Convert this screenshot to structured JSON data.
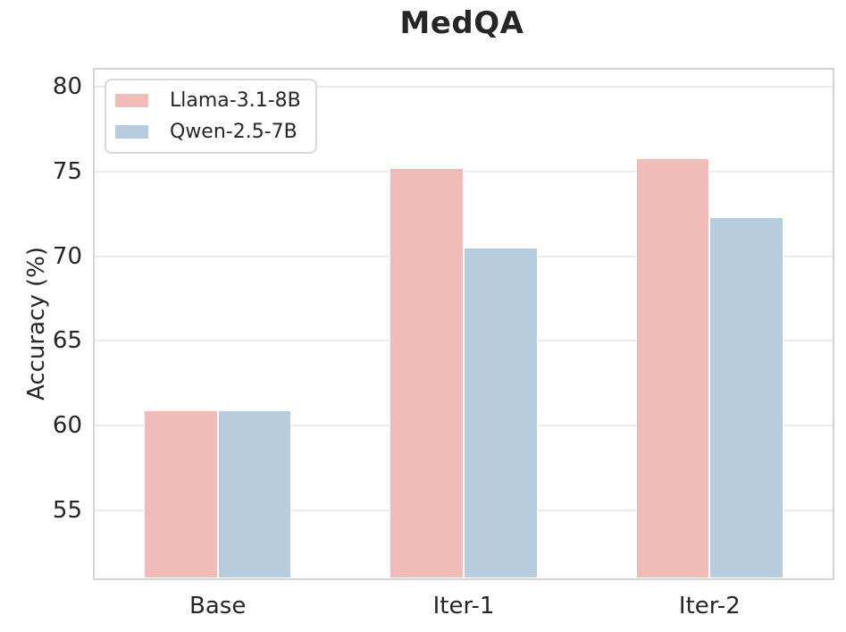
{
  "chart_data": {
    "type": "bar",
    "title": "MedQA",
    "xlabel": "",
    "ylabel": "Accuracy (%)",
    "categories": [
      "Base",
      "Iter-1",
      "Iter-2"
    ],
    "series": [
      {
        "name": "Llama-3.1-8B",
        "color": "#f1bcb7",
        "values": [
          60.9,
          75.2,
          75.8
        ]
      },
      {
        "name": "Qwen-2.5-7B",
        "color": "#b7ccdc",
        "values": [
          60.9,
          70.5,
          72.3
        ]
      }
    ],
    "ylim": [
      51,
      81
    ],
    "yticks": [
      55,
      60,
      65,
      70,
      75,
      80
    ],
    "grid": true,
    "legend_position": "upper left",
    "colors": {
      "text": "#262626",
      "gridline": "#ebebeb",
      "spine": "#d4d4d4",
      "background": "#ffffff"
    }
  }
}
